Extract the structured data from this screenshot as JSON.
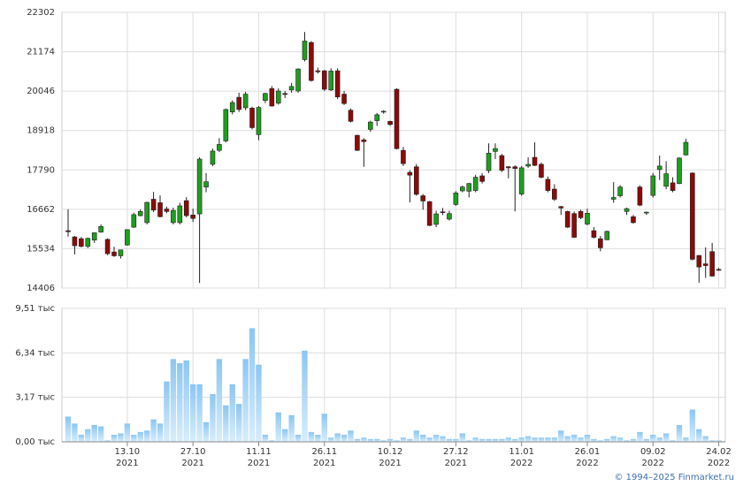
{
  "chart_data": [
    {
      "type": "candlestick",
      "up_color": "#1e9e1e",
      "down_color": "#8b0a0a",
      "grid": true,
      "ylim": [
        14406,
        22302
      ],
      "yticks": [
        14406,
        15534,
        16662,
        17790,
        18918,
        20046,
        21174,
        22302
      ],
      "open": [
        16050,
        15870,
        15820,
        15600,
        15780,
        16010,
        15800,
        15440,
        15330,
        15640,
        16150,
        16480,
        16280,
        16950,
        16850,
        16670,
        16280,
        16280,
        16910,
        16500,
        16530,
        17300,
        17950,
        18350,
        18620,
        19450,
        19870,
        19570,
        19560,
        18800,
        19780,
        20120,
        19700,
        19980,
        20080,
        20050,
        20950,
        21440,
        20630,
        20630,
        20080,
        20630,
        19960,
        19500,
        18780,
        18650,
        18950,
        19200,
        19450,
        19180,
        20100,
        18350,
        17720,
        17880,
        17050,
        16880,
        16230,
        16590,
        16380,
        16800,
        17190,
        17180,
        17200,
        17620,
        17770,
        18320,
        18200,
        17880,
        17880,
        17100,
        17900,
        18150,
        17950,
        17520,
        17240,
        16740,
        16600,
        16540,
        16600,
        16240,
        16050,
        15820,
        15790,
        16950,
        17050,
        16600,
        16450,
        17300,
        16560,
        17060,
        17800,
        17320,
        17420,
        17400,
        18220,
        17700,
        15340,
        15100,
        15450,
        14940
      ],
      "high": [
        16660,
        15900,
        15870,
        15850,
        15960,
        16230,
        15830,
        15590,
        15480,
        16090,
        16560,
        16660,
        16880,
        17160,
        17060,
        16740,
        16710,
        16850,
        17010,
        16680,
        18150,
        17700,
        18400,
        18700,
        19550,
        19780,
        20000,
        20030,
        19600,
        19620,
        20000,
        20190,
        20130,
        20050,
        20280,
        20700,
        21740,
        21480,
        20720,
        20650,
        20700,
        20700,
        20050,
        19550,
        18800,
        18700,
        19200,
        19420,
        19500,
        19200,
        20130,
        18450,
        17780,
        17960,
        17100,
        16900,
        16620,
        16700,
        16620,
        17180,
        17340,
        17420,
        17650,
        17700,
        18550,
        18550,
        18250,
        17900,
        17920,
        17900,
        18150,
        18580,
        18000,
        17600,
        17380,
        16760,
        16620,
        16600,
        16650,
        16680,
        16150,
        15900,
        16050,
        17440,
        17350,
        16710,
        16500,
        17350,
        16600,
        17700,
        18200,
        18040,
        17580,
        18150,
        18680,
        17720,
        15350,
        15570,
        15700,
        14980
      ],
      "low": [
        15880,
        15370,
        15570,
        15550,
        15700,
        15990,
        15350,
        15300,
        15250,
        15620,
        16130,
        16460,
        16230,
        16580,
        16430,
        16550,
        16230,
        16230,
        16430,
        16300,
        14550,
        17150,
        17900,
        18300,
        18580,
        19380,
        19450,
        19500,
        18950,
        18640,
        19700,
        19600,
        19660,
        19850,
        20000,
        20000,
        20900,
        20320,
        20550,
        20050,
        20050,
        19820,
        19650,
        19150,
        18330,
        17880,
        18880,
        19050,
        19400,
        19050,
        18380,
        17900,
        16860,
        17050,
        16650,
        16180,
        16150,
        16500,
        16340,
        16760,
        17150,
        17000,
        17150,
        17400,
        17700,
        18100,
        17730,
        17550,
        16600,
        17050,
        17850,
        17900,
        17550,
        17150,
        16900,
        16500,
        16130,
        15840,
        16380,
        16200,
        15830,
        15460,
        15780,
        16850,
        17000,
        16500,
        16250,
        16750,
        16500,
        17000,
        17500,
        17240,
        17150,
        17380,
        18200,
        15200,
        14560,
        14700,
        14730,
        14900
      ],
      "close": [
        16020,
        15620,
        15600,
        15830,
        15990,
        16170,
        15390,
        15330,
        15500,
        16080,
        16510,
        16600,
        16860,
        16640,
        16450,
        16600,
        16630,
        16760,
        16480,
        16400,
        18100,
        17450,
        18330,
        18520,
        19520,
        19720,
        19520,
        19960,
        19000,
        19580,
        19980,
        19620,
        20050,
        19950,
        20180,
        20680,
        21480,
        20350,
        20600,
        20100,
        20620,
        19880,
        19690,
        19180,
        18350,
        18600,
        19160,
        19370,
        19470,
        19090,
        18400,
        17970,
        17640,
        17090,
        16900,
        16200,
        16530,
        16580,
        16540,
        17130,
        17300,
        17400,
        17580,
        17460,
        18270,
        18400,
        17780,
        17850,
        17830,
        17850,
        17950,
        17920,
        17580,
        17200,
        16950,
        16700,
        16150,
        15860,
        16420,
        16550,
        15860,
        15560,
        16030,
        17000,
        17300,
        16680,
        16280,
        16780,
        16580,
        17620,
        17900,
        17680,
        17200,
        18130,
        18580,
        15230,
        15010,
        15050,
        14750,
        14930
      ]
    },
    {
      "type": "bar",
      "grid": true,
      "ylim": [
        0,
        9.51
      ],
      "yticks": [
        {
          "value": 0,
          "label": "0,00 тыс"
        },
        {
          "value": 3.17,
          "label": "3,17 тыс"
        },
        {
          "value": 6.34,
          "label": "6,34 тыс"
        },
        {
          "value": 9.51,
          "label": "9,51 тыс"
        }
      ],
      "categories": [
        null,
        null,
        null,
        null,
        null,
        null,
        null,
        null,
        null,
        "13.10\n2021",
        null,
        null,
        null,
        null,
        null,
        null,
        null,
        null,
        null,
        "27.10\n2021",
        null,
        null,
        null,
        null,
        null,
        null,
        null,
        null,
        null,
        "11.11\n2021",
        null,
        null,
        null,
        null,
        null,
        null,
        null,
        null,
        null,
        "26.11\n2021",
        null,
        null,
        null,
        null,
        null,
        null,
        null,
        null,
        null,
        "10.12\n2021",
        null,
        null,
        null,
        null,
        null,
        null,
        null,
        null,
        null,
        "27.12\n2021",
        null,
        null,
        null,
        null,
        null,
        null,
        null,
        null,
        null,
        "11.01\n2022",
        null,
        null,
        null,
        null,
        null,
        null,
        null,
        null,
        null,
        "26.01\n2022",
        null,
        null,
        null,
        null,
        null,
        null,
        null,
        null,
        null,
        "09.02\n2022",
        null,
        null,
        null,
        null,
        null,
        null,
        null,
        null,
        null,
        "24.02\n2022"
      ],
      "values": [
        1.8,
        1.3,
        0.5,
        0.9,
        1.2,
        1.1,
        0.1,
        0.5,
        0.6,
        1.3,
        0.5,
        0.7,
        0.8,
        1.6,
        1.3,
        4.3,
        5.9,
        5.6,
        5.8,
        4.1,
        4.1,
        1.4,
        3.4,
        5.9,
        2.6,
        4.1,
        2.7,
        5.9,
        8.1,
        5.5,
        0.5,
        0.1,
        2.1,
        0.9,
        1.9,
        0.5,
        6.5,
        0.7,
        0.5,
        2.0,
        0.3,
        0.6,
        0.5,
        0.8,
        0.2,
        0.3,
        0.2,
        0.2,
        0.1,
        0.2,
        0.1,
        0.3,
        0.2,
        0.8,
        0.5,
        0.3,
        0.5,
        0.4,
        0.2,
        0.2,
        0.6,
        0.1,
        0.3,
        0.2,
        0.2,
        0.2,
        0.2,
        0.3,
        0.2,
        0.3,
        0.4,
        0.3,
        0.3,
        0.3,
        0.3,
        0.8,
        0.4,
        0.5,
        0.3,
        0.5,
        0.2,
        0.1,
        0.2,
        0.4,
        0.3,
        0.1,
        0.2,
        0.7,
        0.2,
        0.5,
        0.3,
        0.6,
        0.1,
        1.2,
        0.3,
        2.3,
        0.9,
        0.4,
        0.1,
        0.1
      ]
    }
  ],
  "footer": "© 1994–2025 Finmarket.ru"
}
